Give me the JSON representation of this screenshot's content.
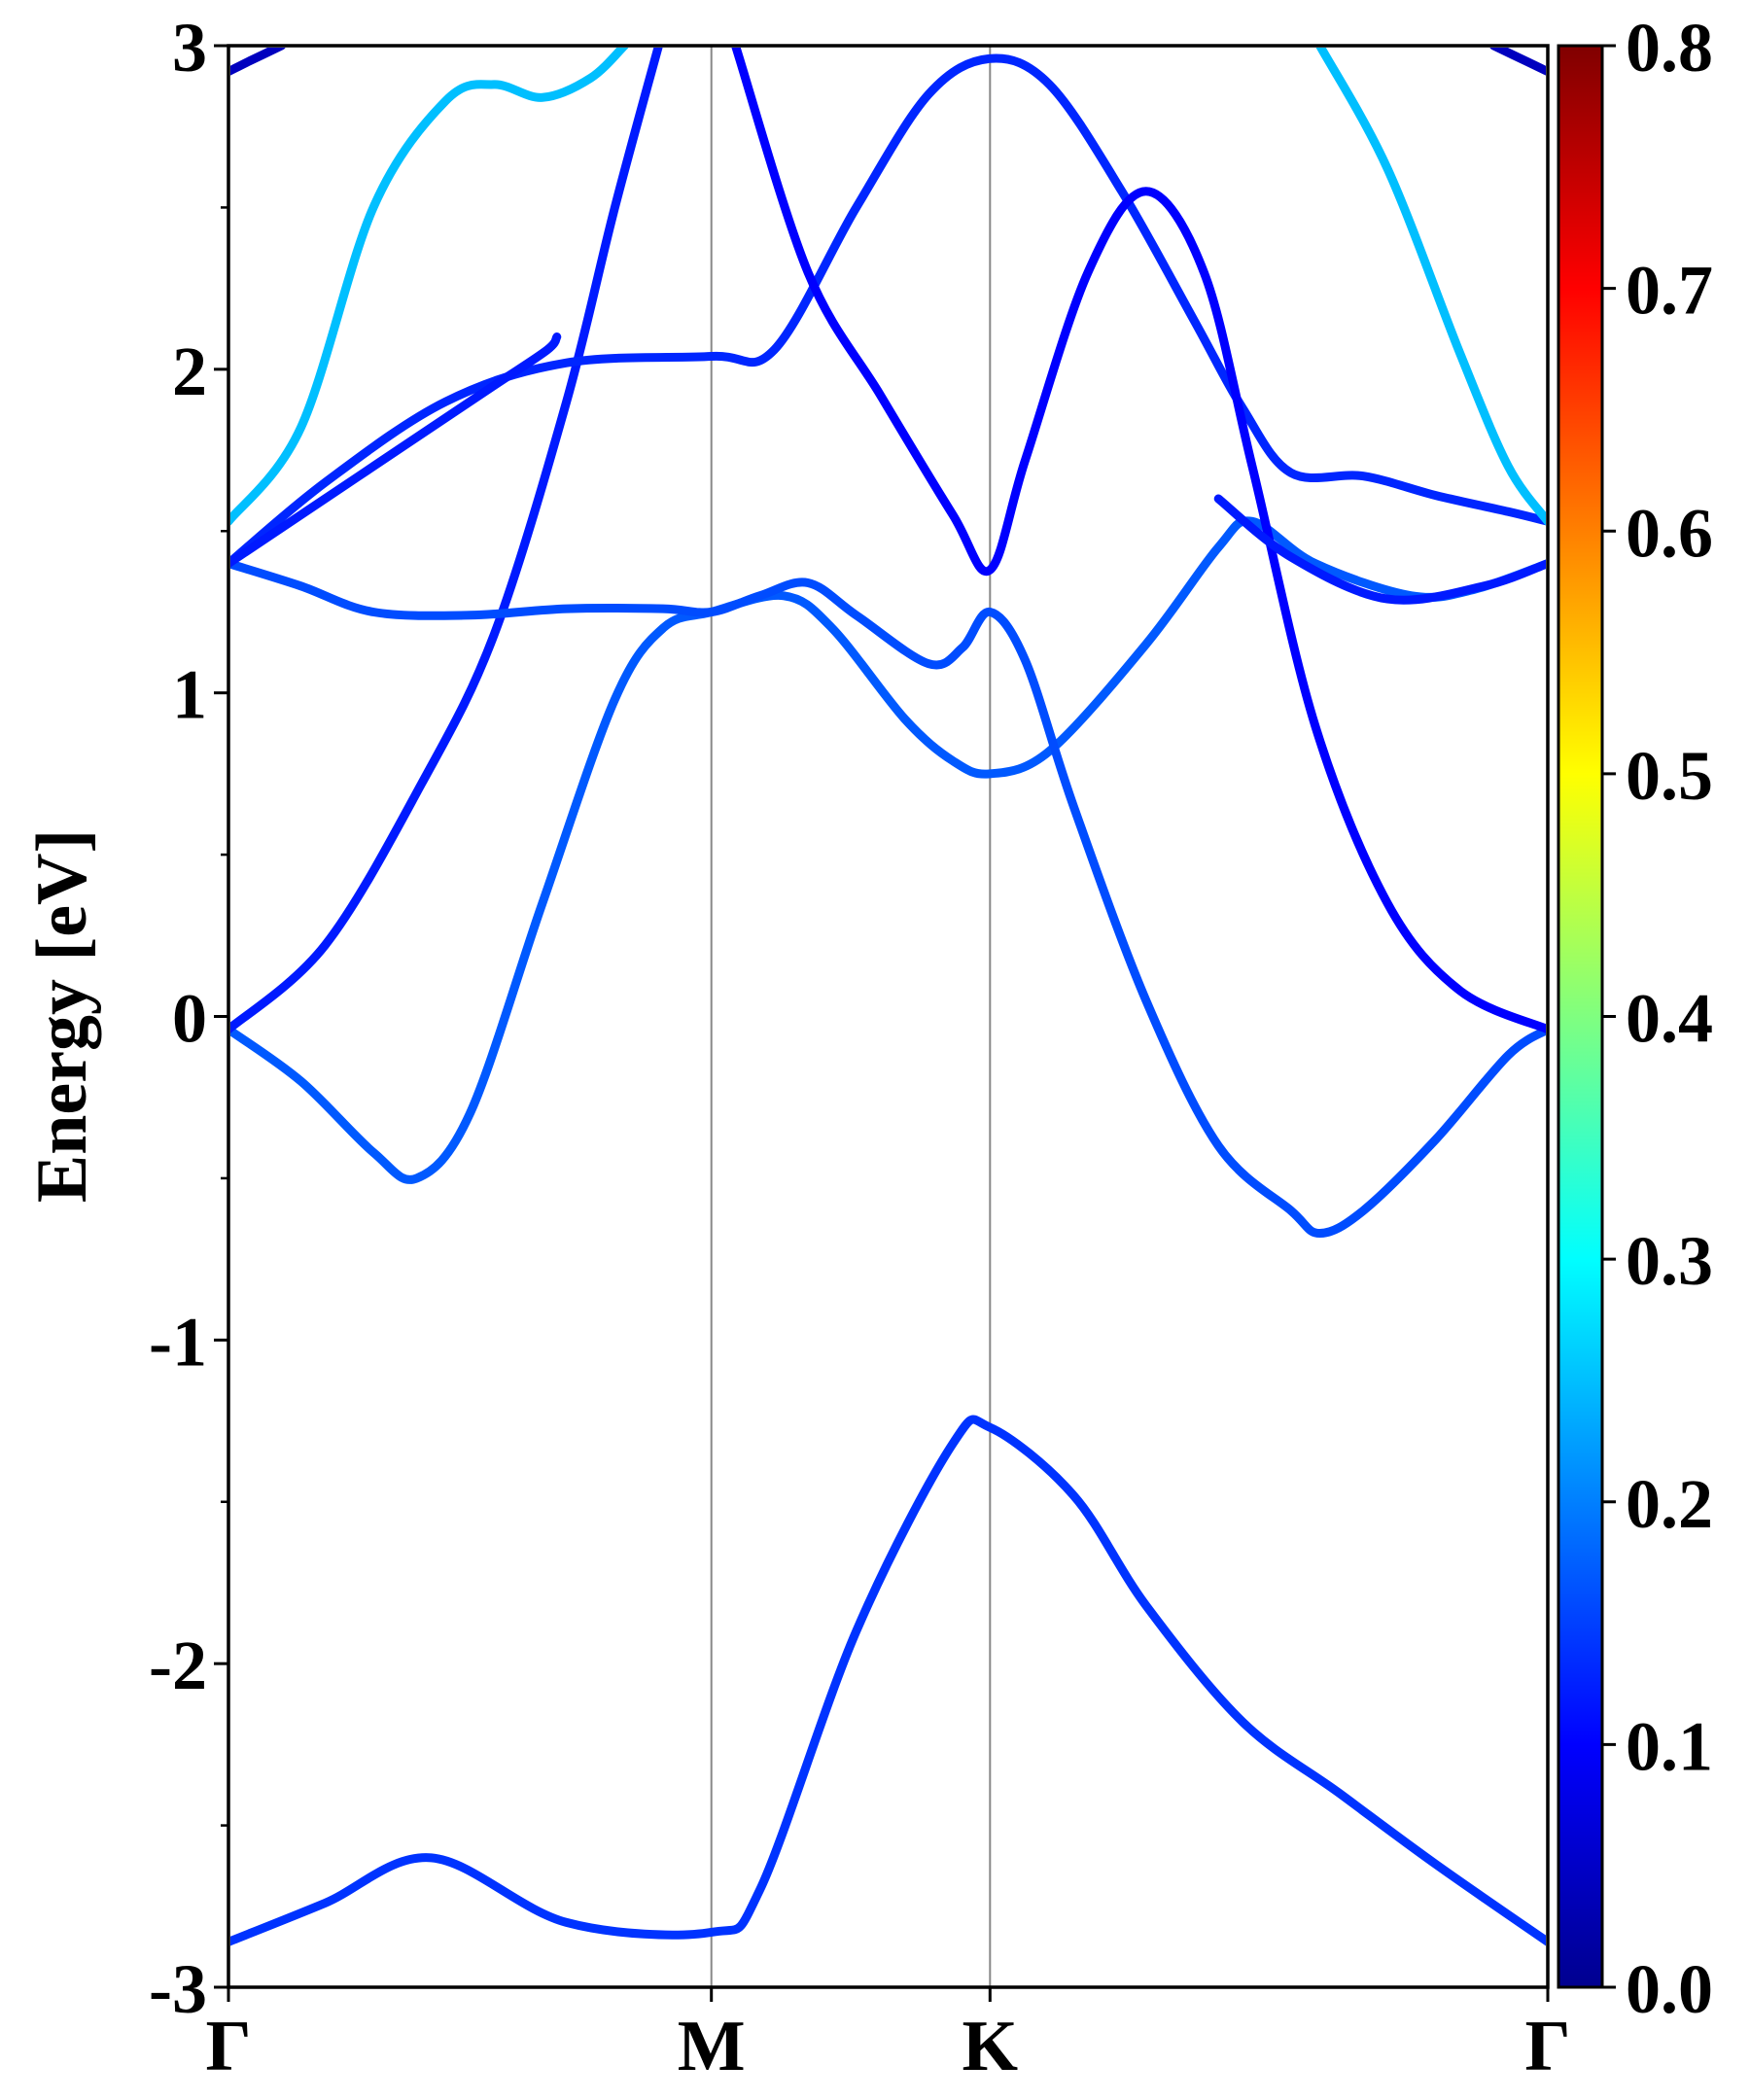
{
  "chart_data": {
    "type": "line",
    "title": "",
    "ylabel": "Energy [eV]",
    "xlabel": "",
    "ylim": [
      -3,
      3
    ],
    "yticks": [
      -3,
      -2,
      -1,
      0,
      1,
      2,
      3
    ],
    "kpoints": [
      {
        "label": "Γ",
        "x": 0
      },
      {
        "label": "M",
        "x": 1.0
      },
      {
        "label": "K",
        "x": 1.577
      },
      {
        "label": "Γ",
        "x": 2.732
      }
    ],
    "colorbar": {
      "colormap": "jet",
      "range": [
        0.0,
        0.8
      ],
      "ticks": [
        "0.0",
        "0.1",
        "0.2",
        "0.3",
        "0.4",
        "0.5",
        "0.6",
        "0.7",
        "0.8"
      ]
    },
    "grid": false,
    "bands": [
      {
        "weight": 0.14,
        "points": [
          [
            0,
            -2.86
          ],
          [
            0.2,
            -2.74
          ],
          [
            0.42,
            -2.6
          ],
          [
            0.7,
            -2.8
          ],
          [
            1.0,
            -2.83
          ],
          [
            1.1,
            -2.7
          ],
          [
            1.3,
            -1.9
          ],
          [
            1.5,
            -1.32
          ],
          [
            1.577,
            -1.27
          ],
          [
            1.75,
            -1.48
          ],
          [
            1.9,
            -1.82
          ],
          [
            2.1,
            -2.18
          ],
          [
            2.3,
            -2.4
          ],
          [
            2.5,
            -2.62
          ],
          [
            2.732,
            -2.86
          ]
        ]
      },
      {
        "weight": 0.17,
        "points": [
          [
            0,
            -0.04
          ],
          [
            0.15,
            -0.2
          ],
          [
            0.3,
            -0.42
          ],
          [
            0.39,
            -0.5
          ],
          [
            0.5,
            -0.3
          ],
          [
            0.65,
            0.35
          ],
          [
            0.8,
            0.98
          ],
          [
            0.9,
            1.2
          ],
          [
            1.0,
            1.25
          ],
          [
            1.15,
            1.3
          ],
          [
            1.25,
            1.2
          ],
          [
            1.4,
            0.92
          ],
          [
            1.5,
            0.79
          ],
          [
            1.577,
            0.75
          ],
          [
            1.7,
            0.82
          ],
          [
            1.9,
            1.15
          ],
          [
            2.05,
            1.45
          ],
          [
            2.12,
            1.53
          ],
          [
            2.25,
            1.4
          ],
          [
            2.45,
            1.3
          ],
          [
            2.58,
            1.32
          ],
          [
            2.732,
            1.4
          ]
        ]
      },
      {
        "weight": 0.12,
        "points": [
          [
            0,
            -0.04
          ],
          [
            0.2,
            0.22
          ],
          [
            0.4,
            0.72
          ],
          [
            0.55,
            1.18
          ],
          [
            0.7,
            1.9
          ],
          [
            0.8,
            2.5
          ],
          [
            0.9,
            3.05
          ]
        ]
      },
      {
        "weight": 0.16,
        "points": [
          [
            0,
            1.4
          ],
          [
            0.15,
            1.33
          ],
          [
            0.3,
            1.25
          ],
          [
            0.5,
            1.24
          ],
          [
            0.7,
            1.26
          ],
          [
            0.9,
            1.26
          ],
          [
            1.0,
            1.25
          ],
          [
            1.1,
            1.3
          ],
          [
            1.2,
            1.34
          ],
          [
            1.3,
            1.24
          ],
          [
            1.45,
            1.09
          ],
          [
            1.52,
            1.14
          ],
          [
            1.577,
            1.25
          ],
          [
            1.65,
            1.1
          ],
          [
            1.75,
            0.65
          ],
          [
            1.9,
            0.05
          ],
          [
            2.05,
            -0.4
          ],
          [
            2.2,
            -0.6
          ],
          [
            2.26,
            -0.67
          ],
          [
            2.35,
            -0.6
          ],
          [
            2.5,
            -0.38
          ],
          [
            2.65,
            -0.12
          ],
          [
            2.732,
            -0.04
          ]
        ]
      },
      {
        "weight": 0.13,
        "points": [
          [
            0,
            1.4
          ],
          [
            0.2,
            1.65
          ],
          [
            0.45,
            1.9
          ],
          [
            0.7,
            2.02
          ],
          [
            1.0,
            2.04
          ],
          [
            1.13,
            2.06
          ],
          [
            1.3,
            2.5
          ],
          [
            1.45,
            2.85
          ],
          [
            1.577,
            2.96
          ],
          [
            1.7,
            2.88
          ],
          [
            1.85,
            2.55
          ],
          [
            2.0,
            2.15
          ],
          [
            2.1,
            1.88
          ],
          [
            2.2,
            1.68
          ],
          [
            2.35,
            1.67
          ],
          [
            2.5,
            1.61
          ],
          [
            2.65,
            1.56
          ],
          [
            2.732,
            1.53
          ]
        ]
      },
      {
        "weight": 0.12,
        "points": [
          [
            0,
            1.4
          ],
          [
            0.2,
            1.6
          ],
          [
            0.4,
            1.8
          ],
          [
            0.55,
            1.95
          ],
          [
            0.66,
            2.06
          ],
          [
            0.68,
            2.1
          ]
        ]
      },
      {
        "weight": 0.1,
        "points": [
          [
            1.05,
            3.0
          ],
          [
            1.2,
            2.3
          ],
          [
            1.35,
            1.92
          ],
          [
            1.5,
            1.55
          ],
          [
            1.577,
            1.38
          ],
          [
            1.65,
            1.72
          ],
          [
            1.78,
            2.3
          ],
          [
            1.9,
            2.55
          ],
          [
            2.02,
            2.3
          ],
          [
            2.12,
            1.7
          ],
          [
            2.25,
            0.9
          ],
          [
            2.4,
            0.35
          ],
          [
            2.55,
            0.08
          ],
          [
            2.732,
            -0.04
          ]
        ]
      },
      {
        "weight": 0.12,
        "points": [
          [
            2.05,
            1.6
          ],
          [
            2.2,
            1.42
          ],
          [
            2.4,
            1.29
          ],
          [
            2.6,
            1.33
          ],
          [
            2.732,
            1.4
          ]
        ]
      },
      {
        "weight": 0.25,
        "points": [
          [
            0,
            1.53
          ],
          [
            0.15,
            1.82
          ],
          [
            0.3,
            2.5
          ],
          [
            0.45,
            2.83
          ],
          [
            0.55,
            2.88
          ],
          [
            0.65,
            2.84
          ],
          [
            0.75,
            2.9
          ],
          [
            0.82,
            3.0
          ]
        ]
      },
      {
        "weight": 0.25,
        "points": [
          [
            2.26,
            3.0
          ],
          [
            2.4,
            2.62
          ],
          [
            2.55,
            2.05
          ],
          [
            2.65,
            1.7
          ],
          [
            2.732,
            1.53
          ]
        ]
      },
      {
        "weight": 0.05,
        "points": [
          [
            0,
            2.92
          ],
          [
            0.04,
            2.95
          ],
          [
            0.11,
            3.0
          ]
        ]
      },
      {
        "weight": 0.05,
        "points": [
          [
            2.62,
            3.0
          ],
          [
            2.69,
            2.95
          ],
          [
            2.732,
            2.92
          ]
        ]
      }
    ]
  }
}
